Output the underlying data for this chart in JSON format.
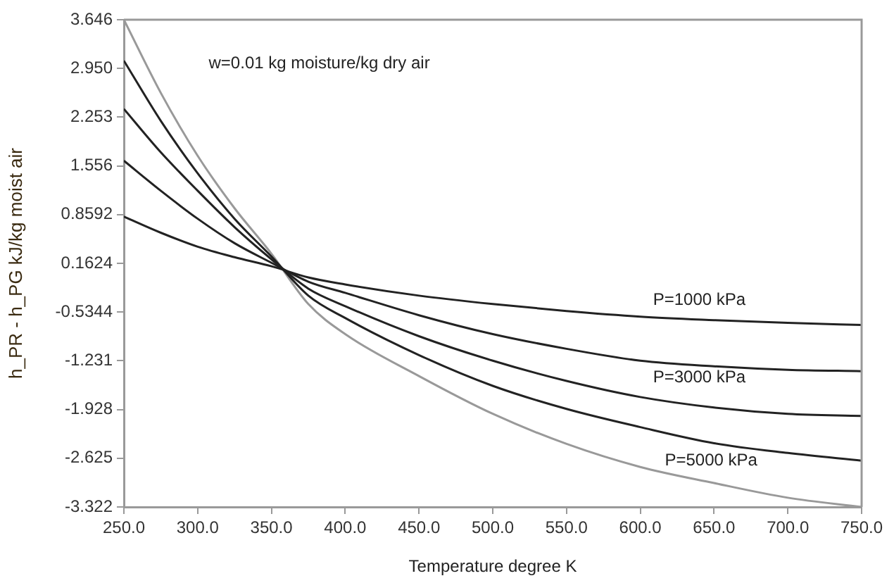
{
  "chart_data": {
    "type": "line",
    "xlabel": "Temperature degree K",
    "ylabel": "h_PR - h_PG kJ/kg moist air",
    "x": [
      250,
      275,
      300,
      325,
      350,
      375,
      400,
      450,
      500,
      550,
      600,
      650,
      700,
      750
    ],
    "series": [
      {
        "color": "#222222",
        "values": [
          0.83,
          0.6,
          0.4,
          0.25,
          0.12,
          -0.04,
          -0.14,
          -0.3,
          -0.42,
          -0.52,
          -0.6,
          -0.65,
          -0.69,
          -0.72
        ]
      },
      {
        "color": "#222222",
        "values": [
          1.63,
          1.2,
          0.8,
          0.45,
          0.17,
          -0.1,
          -0.26,
          -0.58,
          -0.85,
          -1.06,
          -1.23,
          -1.31,
          -1.36,
          -1.38
        ]
      },
      {
        "color": "#222222",
        "values": [
          2.37,
          1.75,
          1.2,
          0.68,
          0.22,
          -0.2,
          -0.45,
          -0.88,
          -1.23,
          -1.52,
          -1.75,
          -1.9,
          -1.99,
          -2.02
        ]
      },
      {
        "color": "#222222",
        "values": [
          3.06,
          2.2,
          1.45,
          0.8,
          0.26,
          -0.3,
          -0.62,
          -1.15,
          -1.59,
          -1.92,
          -2.18,
          -2.41,
          -2.55,
          -2.66
        ]
      },
      {
        "color": "#999999",
        "values": [
          3.646,
          2.6,
          1.7,
          0.95,
          0.3,
          -0.42,
          -0.85,
          -1.45,
          -1.99,
          -2.42,
          -2.75,
          -2.98,
          -3.19,
          -3.322
        ]
      }
    ],
    "xlim": [
      250,
      750
    ],
    "xticks": [
      {
        "value": 250,
        "label": "250.0"
      },
      {
        "value": 300,
        "label": "300.0"
      },
      {
        "value": 350,
        "label": "350.0"
      },
      {
        "value": 400,
        "label": "400.0"
      },
      {
        "value": 450,
        "label": "450.0"
      },
      {
        "value": 500,
        "label": "500.0"
      },
      {
        "value": 550,
        "label": "550.0"
      },
      {
        "value": 600,
        "label": "600.0"
      },
      {
        "value": 650,
        "label": "650.0"
      },
      {
        "value": 700,
        "label": "700.0"
      },
      {
        "value": 750,
        "label": "750.0"
      }
    ],
    "ylim": [
      -3.322,
      3.646
    ],
    "yticks": [
      3.646,
      {
        "value": 2.95,
        "label": "2.950"
      },
      2.253,
      1.556,
      0.8592,
      0.1624,
      -0.5344,
      -1.231,
      -1.928,
      -2.625,
      -3.322
    ],
    "annotations": [
      "w=0.01 kg moisture/kg dry air",
      "P=1000 kPa",
      "P=3000 kPa",
      "P=5000 kPa"
    ],
    "grid": false,
    "legend": false,
    "marker": "none",
    "line_style": "solid"
  }
}
